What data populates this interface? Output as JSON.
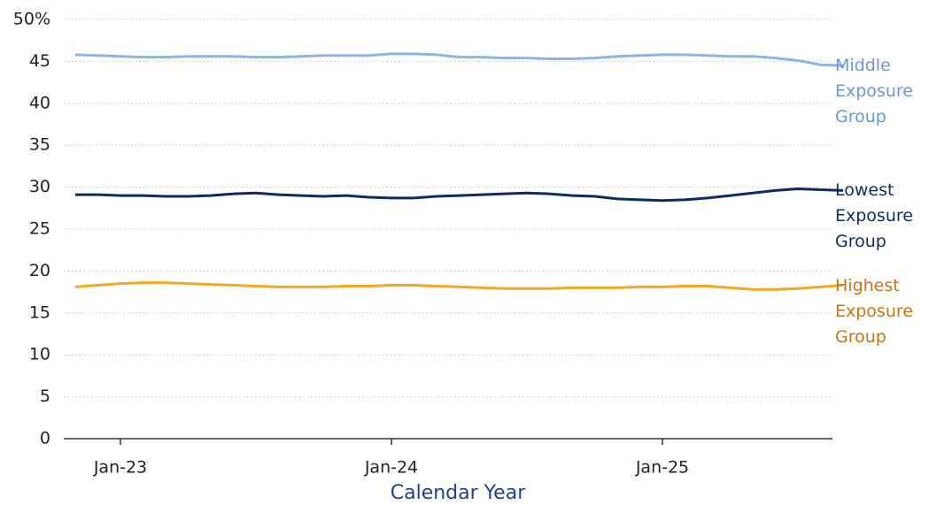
{
  "chart_data": {
    "type": "line",
    "x_label": "Calendar Year",
    "categories": [
      null,
      null,
      "Jan-23",
      null,
      null,
      null,
      null,
      null,
      null,
      null,
      null,
      null,
      null,
      null,
      "Jan-24",
      null,
      null,
      null,
      null,
      null,
      null,
      null,
      null,
      null,
      null,
      null,
      "Jan-25",
      null,
      null,
      null,
      null,
      null,
      null,
      null,
      null
    ],
    "series": [
      {
        "name": "Middle Exposure Group",
        "color": "#8db4e2",
        "label_color": "#6b98cf",
        "values": [
          45.8,
          45.7,
          45.6,
          45.5,
          45.5,
          45.6,
          45.6,
          45.6,
          45.5,
          45.5,
          45.6,
          45.7,
          45.7,
          45.7,
          45.9,
          45.9,
          45.8,
          45.5,
          45.5,
          45.4,
          45.4,
          45.3,
          45.3,
          45.4,
          45.6,
          45.7,
          45.8,
          45.8,
          45.7,
          45.6,
          45.6,
          45.4,
          45.1,
          44.6,
          44.5
        ]
      },
      {
        "name": "Lowest Exposure Group",
        "color": "#0d2d5e",
        "label_color": "#0d2d5e",
        "values": [
          29.1,
          29.1,
          29.0,
          29.0,
          28.9,
          28.9,
          29.0,
          29.2,
          29.3,
          29.1,
          29.0,
          28.9,
          29.0,
          28.8,
          28.7,
          28.7,
          28.9,
          29.0,
          29.1,
          29.2,
          29.3,
          29.2,
          29.0,
          28.9,
          28.6,
          28.5,
          28.4,
          28.5,
          28.7,
          29.0,
          29.3,
          29.6,
          29.8,
          29.7,
          29.6
        ]
      },
      {
        "name": "Highest Exposure Group",
        "color": "#f5a623",
        "label_color": "#c97418",
        "values": [
          18.1,
          18.3,
          18.5,
          18.6,
          18.6,
          18.5,
          18.4,
          18.3,
          18.2,
          18.1,
          18.1,
          18.1,
          18.2,
          18.2,
          18.3,
          18.3,
          18.2,
          18.1,
          18.0,
          17.9,
          17.9,
          17.9,
          18.0,
          18.0,
          18.0,
          18.1,
          18.1,
          18.2,
          18.2,
          18.0,
          17.8,
          17.8,
          17.9,
          18.1,
          18.3
        ]
      }
    ],
    "ylim": [
      0,
      50
    ],
    "yticks": [
      0,
      5,
      10,
      15,
      20,
      25,
      30,
      35,
      40,
      45,
      {
        "value": 50,
        "label": "50%"
      }
    ],
    "grid": true
  }
}
